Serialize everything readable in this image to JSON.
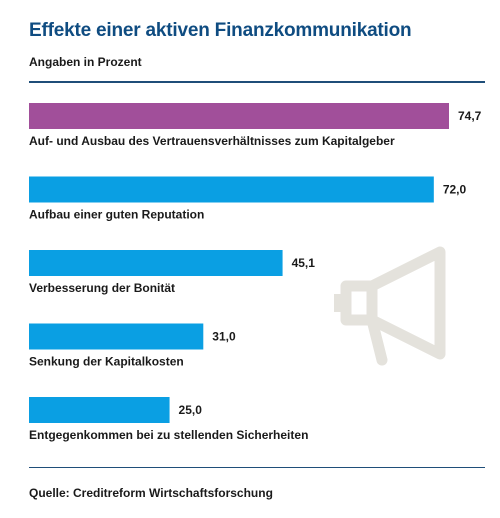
{
  "header": {
    "title": "Effekte einer aktiven Finanzkommunikation",
    "subtitle": "Angaben in Prozent"
  },
  "footer": {
    "source": "Quelle: Creditreform Wirtschaftsforschung"
  },
  "colors": {
    "highlight": "#a14f9a",
    "bar": "#0a9fe3",
    "title": "#0f4c81",
    "rule": "#1f4e79",
    "icon": "#e4e2dc"
  },
  "icons": [
    "megaphone-icon"
  ],
  "chart_data": {
    "type": "bar",
    "orientation": "horizontal",
    "categories": [
      "Auf- und Ausbau des Vertrauensverhältnisses zum Kapitalgeber",
      "Aufbau einer guten Reputation",
      "Verbesserung der Bonität",
      "Senkung der Kapitalkosten",
      "Entgegenkommen bei zu stellenden Sicherheiten"
    ],
    "values": [
      74.7,
      72.0,
      45.1,
      31.0,
      25.0
    ],
    "value_labels": [
      "74,7",
      "72,0",
      "45,1",
      "31,0",
      "25,0"
    ],
    "highlight_index": 0,
    "xlim": [
      0,
      74.7
    ],
    "grid": false,
    "legend": "none",
    "title": "Effekte einer aktiven Finanzkommunikation",
    "subtitle": "Angaben in Prozent"
  }
}
